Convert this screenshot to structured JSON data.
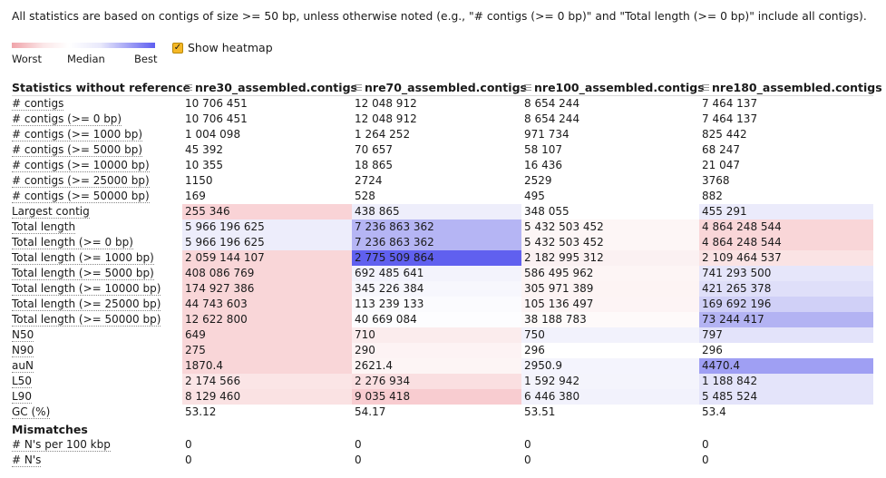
{
  "note": "All statistics are based on contigs of size >= 50 bp, unless otherwise noted (e.g., \"# contigs (>= 0 bp)\" and \"Total length (>= 0 bp)\" include all contigs).",
  "legend": {
    "worst": "Worst",
    "median": "Median",
    "best": "Best"
  },
  "heatmap_toggle": {
    "label": "Show heatmap",
    "checked": true
  },
  "table": {
    "header": [
      "Statistics without reference",
      "nre30_assembled.contigs",
      "nre70_assembled.contigs",
      "nre100_assembled.contigs",
      "nre180_assembled.contigs"
    ],
    "rows": [
      {
        "m": "# contigs",
        "v": [
          "10 706 451",
          "12 048 912",
          "8 654 244",
          "7 464 137"
        ],
        "c": [
          "",
          "",
          "",
          ""
        ]
      },
      {
        "m": "# contigs (>= 0 bp)",
        "v": [
          "10 706 451",
          "12 048 912",
          "8 654 244",
          "7 464 137"
        ],
        "c": [
          "",
          "",
          "",
          ""
        ]
      },
      {
        "m": "# contigs (>= 1000 bp)",
        "v": [
          "1 004 098",
          "1 264 252",
          "971 734",
          "825 442"
        ],
        "c": [
          "",
          "",
          "",
          ""
        ]
      },
      {
        "m": "# contigs (>= 5000 bp)",
        "v": [
          "45 392",
          "70 657",
          "58 107",
          "68 247"
        ],
        "c": [
          "",
          "",
          "",
          ""
        ]
      },
      {
        "m": "# contigs (>= 10000 bp)",
        "v": [
          "10 355",
          "18 865",
          "16 436",
          "21 047"
        ],
        "c": [
          "",
          "",
          "",
          ""
        ]
      },
      {
        "m": "# contigs (>= 25000 bp)",
        "v": [
          "1150",
          "2724",
          "2529",
          "3768"
        ],
        "c": [
          "",
          "",
          "",
          ""
        ]
      },
      {
        "m": "# contigs (>= 50000 bp)",
        "v": [
          "169",
          "528",
          "495",
          "882"
        ],
        "c": [
          "",
          "",
          "",
          ""
        ]
      },
      {
        "m": "Largest contig",
        "v": [
          "255 346",
          "438 865",
          "348 055",
          "455 291"
        ],
        "c": [
          "#f9d3d6",
          "#eeeefb",
          "#ffffff",
          "#ebebfb"
        ]
      },
      {
        "m": "Total length",
        "v": [
          "5 966 196 625",
          "7 236 863 362",
          "5 432 503 452",
          "4 864 248 544"
        ],
        "c": [
          "#ededfb",
          "#b5b5f4",
          "#fdf6f6",
          "#f9d6d8"
        ]
      },
      {
        "m": "Total length (>= 0 bp)",
        "v": [
          "5 966 196 625",
          "7 236 863 362",
          "5 432 503 452",
          "4 864 248 544"
        ],
        "c": [
          "#ededfb",
          "#b5b5f4",
          "#fdf6f6",
          "#f9d6d8"
        ]
      },
      {
        "m": "Total length (>= 1000 bp)",
        "v": [
          "2 059 144 107",
          "2 775 509 864",
          "2 182 995 312",
          "2 109 464 537"
        ],
        "c": [
          "#f9d6d8",
          "#6060ef",
          "#fbf1f2",
          "#fae3e4"
        ]
      },
      {
        "m": "Total length (>= 5000 bp)",
        "v": [
          "408 086 769",
          "692 485 641",
          "586 495 962",
          "741 293 500"
        ],
        "c": [
          "#f9d6d8",
          "#f3f3fc",
          "#fdf5f5",
          "#e6e6fa"
        ]
      },
      {
        "m": "Total length (>= 10000 bp)",
        "v": [
          "174 927 386",
          "345 226 384",
          "305 971 389",
          "421 265 378"
        ],
        "c": [
          "#f9d6d8",
          "#f7f7fd",
          "#fdf4f4",
          "#dfdff9"
        ]
      },
      {
        "m": "Total length (>= 25000 bp)",
        "v": [
          "44 743 603",
          "113 239 133",
          "105 136 497",
          "169 692 196"
        ],
        "c": [
          "#f9d6d8",
          "#fbfbfe",
          "#fdf4f5",
          "#d0d0f7"
        ]
      },
      {
        "m": "Total length (>= 50000 bp)",
        "v": [
          "12 622 800",
          "40 669 084",
          "38 188 783",
          "73 244 417"
        ],
        "c": [
          "#f9d6d8",
          "#fdfdff",
          "#fefafa",
          "#b3b3f3"
        ]
      },
      {
        "m": "N50",
        "v": [
          "649",
          "710",
          "750",
          "797"
        ],
        "c": [
          "#f9d6d8",
          "#fbeced",
          "#f2f2fc",
          "#e3e3fa"
        ]
      },
      {
        "m": "N90",
        "v": [
          "275",
          "290",
          "296",
          "296"
        ],
        "c": [
          "#f9d6d8",
          "#fdf3f4",
          "#ffffff",
          "#ffffff"
        ]
      },
      {
        "m": "auN",
        "v": [
          "1870.4",
          "2621.4",
          "2950.9",
          "4470.4"
        ],
        "c": [
          "#f9d6d8",
          "#fdf5f5",
          "#f4f4fd",
          "#9f9ff3"
        ]
      },
      {
        "m": "L50",
        "v": [
          "2 174 566",
          "2 276 934",
          "1 592 942",
          "1 188 842"
        ],
        "c": [
          "#fbe5e6",
          "#fadfe1",
          "#f4f4fc",
          "#e4e4fa"
        ]
      },
      {
        "m": "L90",
        "v": [
          "8 129 460",
          "9 035 418",
          "6 446 380",
          "5 485 524"
        ],
        "c": [
          "#fae2e3",
          "#f8ccd0",
          "#f2f2fc",
          "#e4e4fa"
        ]
      },
      {
        "m": "GC (%)",
        "v": [
          "53.12",
          "54.17",
          "53.51",
          "53.4"
        ],
        "c": [
          "",
          "",
          "",
          ""
        ]
      }
    ],
    "section": "Mismatches",
    "mismatch_rows": [
      {
        "m": "# N's per 100 kbp",
        "v": [
          "0",
          "0",
          "0",
          "0"
        ],
        "c": [
          "",
          "",
          "",
          ""
        ]
      },
      {
        "m": "# N's",
        "v": [
          "0",
          "0",
          "0",
          "0"
        ],
        "c": [
          "",
          "",
          "",
          ""
        ]
      }
    ]
  }
}
